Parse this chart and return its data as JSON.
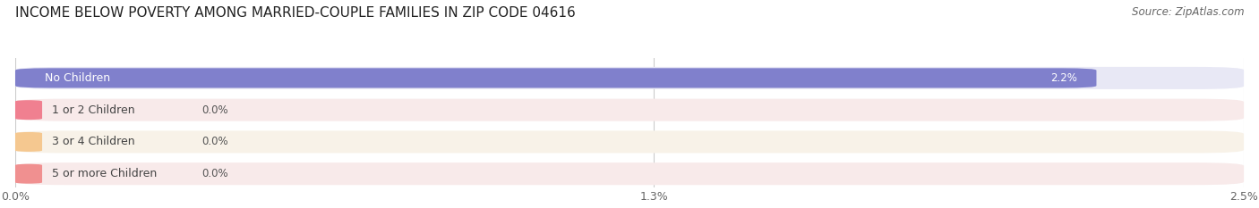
{
  "title": "INCOME BELOW POVERTY AMONG MARRIED-COUPLE FAMILIES IN ZIP CODE 04616",
  "source": "Source: ZipAtlas.com",
  "categories": [
    "No Children",
    "1 or 2 Children",
    "3 or 4 Children",
    "5 or more Children"
  ],
  "values": [
    2.2,
    0.0,
    0.0,
    0.0
  ],
  "bar_colors": [
    "#8080cc",
    "#f08090",
    "#f5c890",
    "#f09090"
  ],
  "row_bg_colors": [
    "#e8e8f5",
    "#f8eaea",
    "#f8f2e8",
    "#f8eaea"
  ],
  "xlim": [
    0,
    2.5
  ],
  "xticks": [
    0.0,
    1.3,
    2.5
  ],
  "xtick_labels": [
    "0.0%",
    "1.3%",
    "2.5%"
  ],
  "background_color": "#ffffff",
  "grid_color": "#cccccc",
  "title_fontsize": 11,
  "label_fontsize": 9,
  "value_fontsize": 8.5,
  "tick_fontsize": 9,
  "source_fontsize": 8.5
}
